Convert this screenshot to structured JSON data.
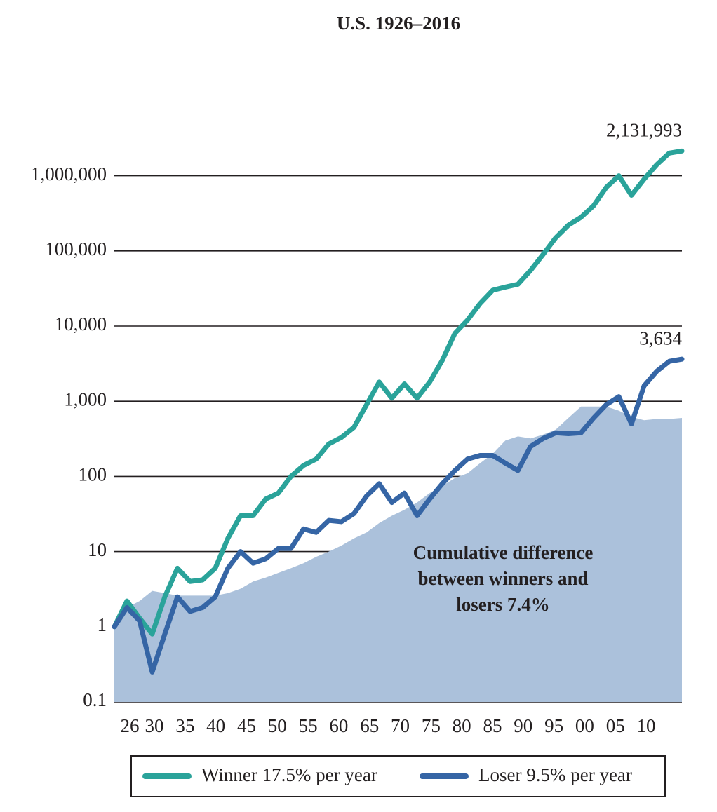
{
  "chart_data": {
    "type": "line",
    "title": "U.S. 1926–2016",
    "annotation": [
      "Cumulative difference",
      "between winners and",
      "losers 7.4%"
    ],
    "log_scale": true,
    "grid": true,
    "x": [
      1926,
      1928,
      1930,
      1932,
      1934,
      1936,
      1938,
      1940,
      1942,
      1944,
      1946,
      1948,
      1950,
      1952,
      1954,
      1956,
      1958,
      1960,
      1962,
      1964,
      1966,
      1968,
      1970,
      1972,
      1974,
      1976,
      1978,
      1980,
      1982,
      1984,
      1986,
      1988,
      1990,
      1992,
      1994,
      1996,
      1998,
      2000,
      2002,
      2004,
      2006,
      2008,
      2010,
      2012,
      2014,
      2016
    ],
    "xlim": [
      1926,
      2016
    ],
    "xticks": [
      {
        "value": 1926,
        "label": "26"
      },
      {
        "value": 1930,
        "label": "30"
      },
      {
        "value": 1935,
        "label": "35"
      },
      {
        "value": 1940,
        "label": "40"
      },
      {
        "value": 1945,
        "label": "45"
      },
      {
        "value": 1950,
        "label": "50"
      },
      {
        "value": 1955,
        "label": "55"
      },
      {
        "value": 1960,
        "label": "60"
      },
      {
        "value": 1965,
        "label": "65"
      },
      {
        "value": 1970,
        "label": "70"
      },
      {
        "value": 1975,
        "label": "75"
      },
      {
        "value": 1980,
        "label": "80"
      },
      {
        "value": 1985,
        "label": "85"
      },
      {
        "value": 1990,
        "label": "90"
      },
      {
        "value": 1995,
        "label": "95"
      },
      {
        "value": 2000,
        "label": "00"
      },
      {
        "value": 2005,
        "label": "05"
      },
      {
        "value": 2010,
        "label": "10"
      }
    ],
    "ylim": [
      0.1,
      5000000
    ],
    "yticks": [
      0.1,
      1,
      10,
      100,
      {
        "value": 1000,
        "label": "1,000"
      },
      {
        "value": 10000,
        "label": "10,000"
      },
      {
        "value": 100000,
        "label": "100,000"
      },
      {
        "value": 1000000,
        "label": "1,000,000"
      }
    ],
    "area": {
      "color": "#abc1db",
      "values": [
        1,
        1.8,
        2.2,
        3,
        2.8,
        2.6,
        2.6,
        2.6,
        2.6,
        2.8,
        3.2,
        4,
        4.5,
        5.2,
        6,
        7,
        8.5,
        10,
        12,
        15,
        18,
        24,
        30,
        36,
        45,
        60,
        75,
        95,
        110,
        150,
        200,
        300,
        340,
        320,
        360,
        420,
        600,
        850,
        850,
        850,
        750,
        620,
        560,
        580,
        580,
        600
      ]
    },
    "series": [
      {
        "name": "Winner 17.5% per year",
        "color": "#2aa39a",
        "values": [
          1,
          2.2,
          1.3,
          0.8,
          2.5,
          6,
          4,
          4.2,
          6,
          15,
          30,
          30,
          50,
          60,
          100,
          140,
          170,
          270,
          330,
          450,
          900,
          1800,
          1100,
          1700,
          1100,
          1800,
          3500,
          8000,
          12000,
          20000,
          30000,
          33000,
          36000,
          55000,
          90000,
          150000,
          220000,
          280000,
          400000,
          700000,
          1000000,
          550000,
          900000,
          1400000,
          2000000,
          2131993
        ],
        "value_labels": [
          null,
          null,
          null,
          null,
          null,
          null,
          null,
          null,
          null,
          null,
          null,
          null,
          null,
          null,
          null,
          null,
          null,
          null,
          null,
          null,
          null,
          null,
          null,
          null,
          null,
          null,
          null,
          null,
          null,
          null,
          null,
          null,
          null,
          null,
          null,
          null,
          null,
          null,
          null,
          null,
          null,
          null,
          null,
          null,
          null,
          "2,131,993"
        ]
      },
      {
        "name": "Loser 9.5% per year",
        "color": "#3565a5",
        "values": [
          1,
          1.8,
          1.2,
          0.25,
          0.8,
          2.5,
          1.6,
          1.8,
          2.5,
          6,
          10,
          7,
          8,
          11,
          11,
          20,
          18,
          26,
          25,
          32,
          55,
          80,
          45,
          60,
          30,
          50,
          80,
          120,
          170,
          190,
          190,
          150,
          120,
          250,
          320,
          380,
          370,
          380,
          600,
          900,
          1150,
          500,
          1600,
          2500,
          3400,
          3634
        ],
        "value_labels": [
          null,
          null,
          null,
          null,
          null,
          null,
          null,
          null,
          null,
          null,
          null,
          null,
          null,
          null,
          null,
          null,
          null,
          null,
          null,
          null,
          null,
          null,
          null,
          null,
          null,
          null,
          null,
          null,
          null,
          null,
          null,
          null,
          null,
          null,
          null,
          null,
          null,
          null,
          null,
          null,
          null,
          null,
          null,
          null,
          null,
          "3,634"
        ]
      }
    ]
  }
}
